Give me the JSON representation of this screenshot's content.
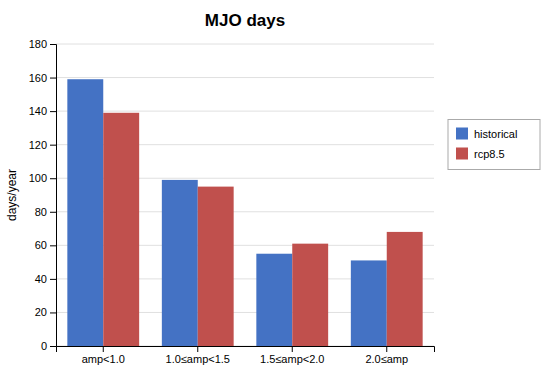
{
  "chart_data": {
    "type": "bar",
    "title": "MJO days",
    "categories": [
      "amp<1.0",
      "1.0≤amp<1.5",
      "1.5≤amp<2.0",
      "2.0≤amp"
    ],
    "series": [
      {
        "name": "historical",
        "color": "#4472C4",
        "values": [
          159,
          99,
          55,
          51
        ]
      },
      {
        "name": "rcp8.5",
        "color": "#C0504D",
        "values": [
          139,
          95,
          61,
          68
        ]
      }
    ],
    "ylabel": "days/year",
    "ylim": [
      0,
      180
    ],
    "yticks": [
      0,
      20,
      40,
      60,
      80,
      100,
      120,
      140,
      160,
      180
    ],
    "grid": true,
    "legend": "right"
  }
}
